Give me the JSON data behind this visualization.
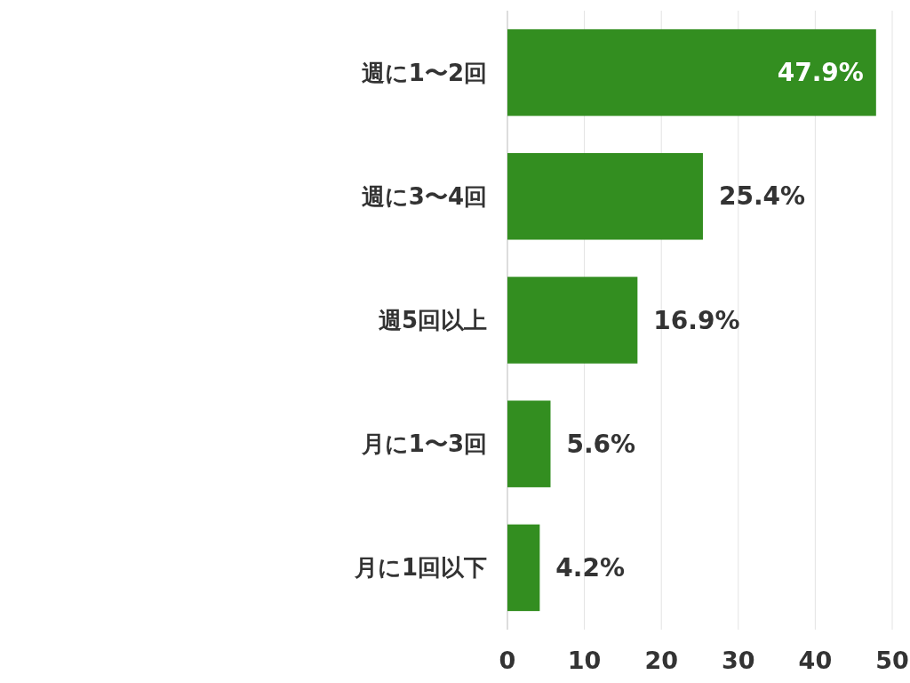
{
  "chart_data": {
    "type": "bar",
    "orientation": "horizontal",
    "categories": [
      "週に1〜2回",
      "週に3〜4回",
      "週5回以上",
      "月に1〜3回",
      "月に1回以下"
    ],
    "values": [
      47.9,
      25.4,
      16.9,
      5.6,
      4.2
    ],
    "value_labels": [
      "47.9%",
      "25.4%",
      "16.9%",
      "5.6%",
      "4.2%"
    ],
    "color": "#338e20",
    "xlim": [
      0,
      50
    ],
    "xticks": [
      0,
      10,
      20,
      30,
      40,
      50
    ],
    "grid": "x"
  }
}
